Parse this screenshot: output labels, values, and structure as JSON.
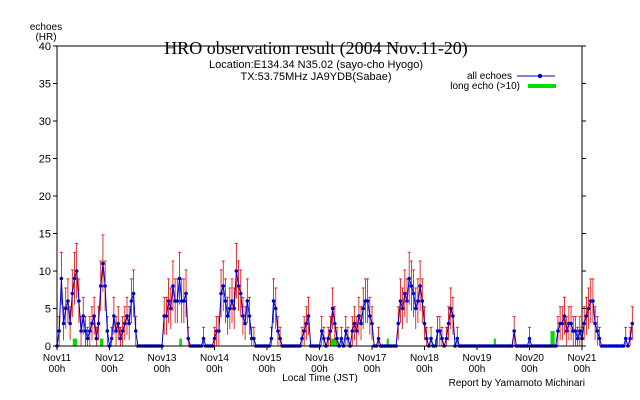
{
  "chart_data": {
    "type": "line",
    "title": "HRO observation result (2004 Nov.11-20)",
    "subtitle_lines": [
      "Location:E134.34 N35.02 (sayo-cho Hyogo)",
      "TX:53.75MHz JA9YDB(Sabae)"
    ],
    "ylabel_lines": [
      "echoes",
      "(HR)"
    ],
    "xlabel": "Local Time (JST)",
    "credit": "Report by Yamamoto Michinari",
    "ylim": [
      0,
      40
    ],
    "y_ticks": [
      "0",
      "5",
      "10",
      "15",
      "20",
      "25",
      "30",
      "35",
      "40"
    ],
    "xlim_days": [
      0,
      10
    ],
    "x_ticks": [
      {
        "day": 0,
        "label": "Nov11",
        "sub": "00h"
      },
      {
        "day": 1,
        "label": "Nov12",
        "sub": "00h"
      },
      {
        "day": 2,
        "label": "Nov13",
        "sub": "00h"
      },
      {
        "day": 3,
        "label": "Nov14",
        "sub": "00h"
      },
      {
        "day": 4,
        "label": "Nov15",
        "sub": "00h"
      },
      {
        "day": 5,
        "label": "Nov16",
        "sub": "00h"
      },
      {
        "day": 6,
        "label": "Nov17",
        "sub": "00h"
      },
      {
        "day": 7,
        "label": "Nov18",
        "sub": "00h"
      },
      {
        "day": 8,
        "label": "Nov19",
        "sub": "00h"
      },
      {
        "day": 9,
        "label": "Nov20",
        "sub": "00h"
      },
      {
        "day": 10,
        "label": "Nov21",
        "sub": "00h"
      }
    ],
    "legend": {
      "placement": "top-right",
      "entries": [
        {
          "name": "all echoes",
          "color": "#0000cc"
        },
        {
          "name": "long echo (>10)",
          "color": "#00dd00"
        }
      ]
    },
    "grid": false,
    "colors": {
      "line": "#0000cc",
      "points": "#0000cc",
      "error_bars": "#dd0000",
      "long_echo": "#00dd00",
      "axes": "#000000"
    },
    "series": [
      {
        "name": "all echoes",
        "hourly_values": [
          0,
          2,
          9,
          3,
          5,
          6,
          3,
          7,
          9,
          10,
          6,
          2,
          4,
          2,
          1,
          2,
          3,
          4,
          1,
          3,
          8,
          11,
          8,
          2,
          0,
          1,
          4,
          2,
          3,
          1,
          2,
          3,
          4,
          3,
          6,
          7,
          2,
          0,
          0,
          0,
          0,
          0,
          0,
          0,
          0,
          0,
          0,
          0,
          0,
          4,
          4,
          6,
          5,
          8,
          6,
          6,
          9,
          6,
          6,
          7,
          1,
          0,
          0,
          0,
          0,
          0,
          0,
          1,
          0,
          0,
          0,
          0,
          1,
          2,
          2,
          7,
          8,
          6,
          4,
          5,
          6,
          5,
          10,
          8,
          7,
          4,
          3,
          6,
          4,
          1,
          1,
          0,
          0,
          0,
          0,
          0,
          0,
          0,
          1,
          6,
          5,
          2,
          1,
          0,
          0,
          0,
          0,
          0,
          0,
          0,
          0,
          0,
          1,
          2,
          3,
          4,
          0,
          0,
          0,
          0,
          0,
          2,
          1,
          0,
          1,
          2,
          5,
          3,
          1,
          0,
          1,
          0,
          2,
          1,
          0,
          2,
          3,
          2,
          4,
          3,
          5,
          6,
          6,
          4,
          3,
          0,
          0,
          1,
          0,
          0,
          0,
          0,
          0,
          0,
          0,
          0,
          3,
          6,
          5,
          7,
          6,
          9,
          8,
          7,
          5,
          6,
          8,
          6,
          3,
          1,
          0,
          1,
          0,
          0,
          2,
          2,
          1,
          0,
          1,
          3,
          5,
          4,
          0,
          1,
          0,
          0,
          0,
          0,
          0,
          0,
          0,
          0,
          0,
          0,
          0,
          0,
          0,
          0,
          0,
          0,
          0,
          0,
          0,
          0,
          0,
          0,
          0,
          0,
          0,
          2,
          0,
          0,
          0,
          0,
          0,
          0,
          1,
          0,
          0,
          0,
          0,
          0,
          0,
          0,
          0,
          0,
          0,
          0,
          0,
          2,
          3,
          3,
          4,
          2,
          3,
          3,
          2,
          2,
          1,
          2,
          1,
          3,
          4,
          5,
          6,
          6,
          3,
          2,
          1,
          0,
          0,
          0,
          0,
          0,
          0,
          0,
          0,
          0,
          0,
          0,
          1,
          0,
          1,
          3
        ],
        "start_day": 0,
        "step_hours": 1
      }
    ],
    "long_echo_hours": [
      {
        "start_day": 0.3,
        "end_day": 0.38,
        "value": 1
      },
      {
        "start_day": 0.82,
        "end_day": 0.88,
        "value": 1
      },
      {
        "start_day": 2.33,
        "end_day": 2.38,
        "value": 1
      },
      {
        "start_day": 5.2,
        "end_day": 5.34,
        "value": 1
      },
      {
        "start_day": 6.28,
        "end_day": 6.32,
        "value": 1
      },
      {
        "start_day": 7.2,
        "end_day": 7.24,
        "value": 1
      },
      {
        "start_day": 8.32,
        "end_day": 8.36,
        "value": 1
      },
      {
        "start_day": 9.4,
        "end_day": 9.48,
        "value": 2
      }
    ]
  }
}
